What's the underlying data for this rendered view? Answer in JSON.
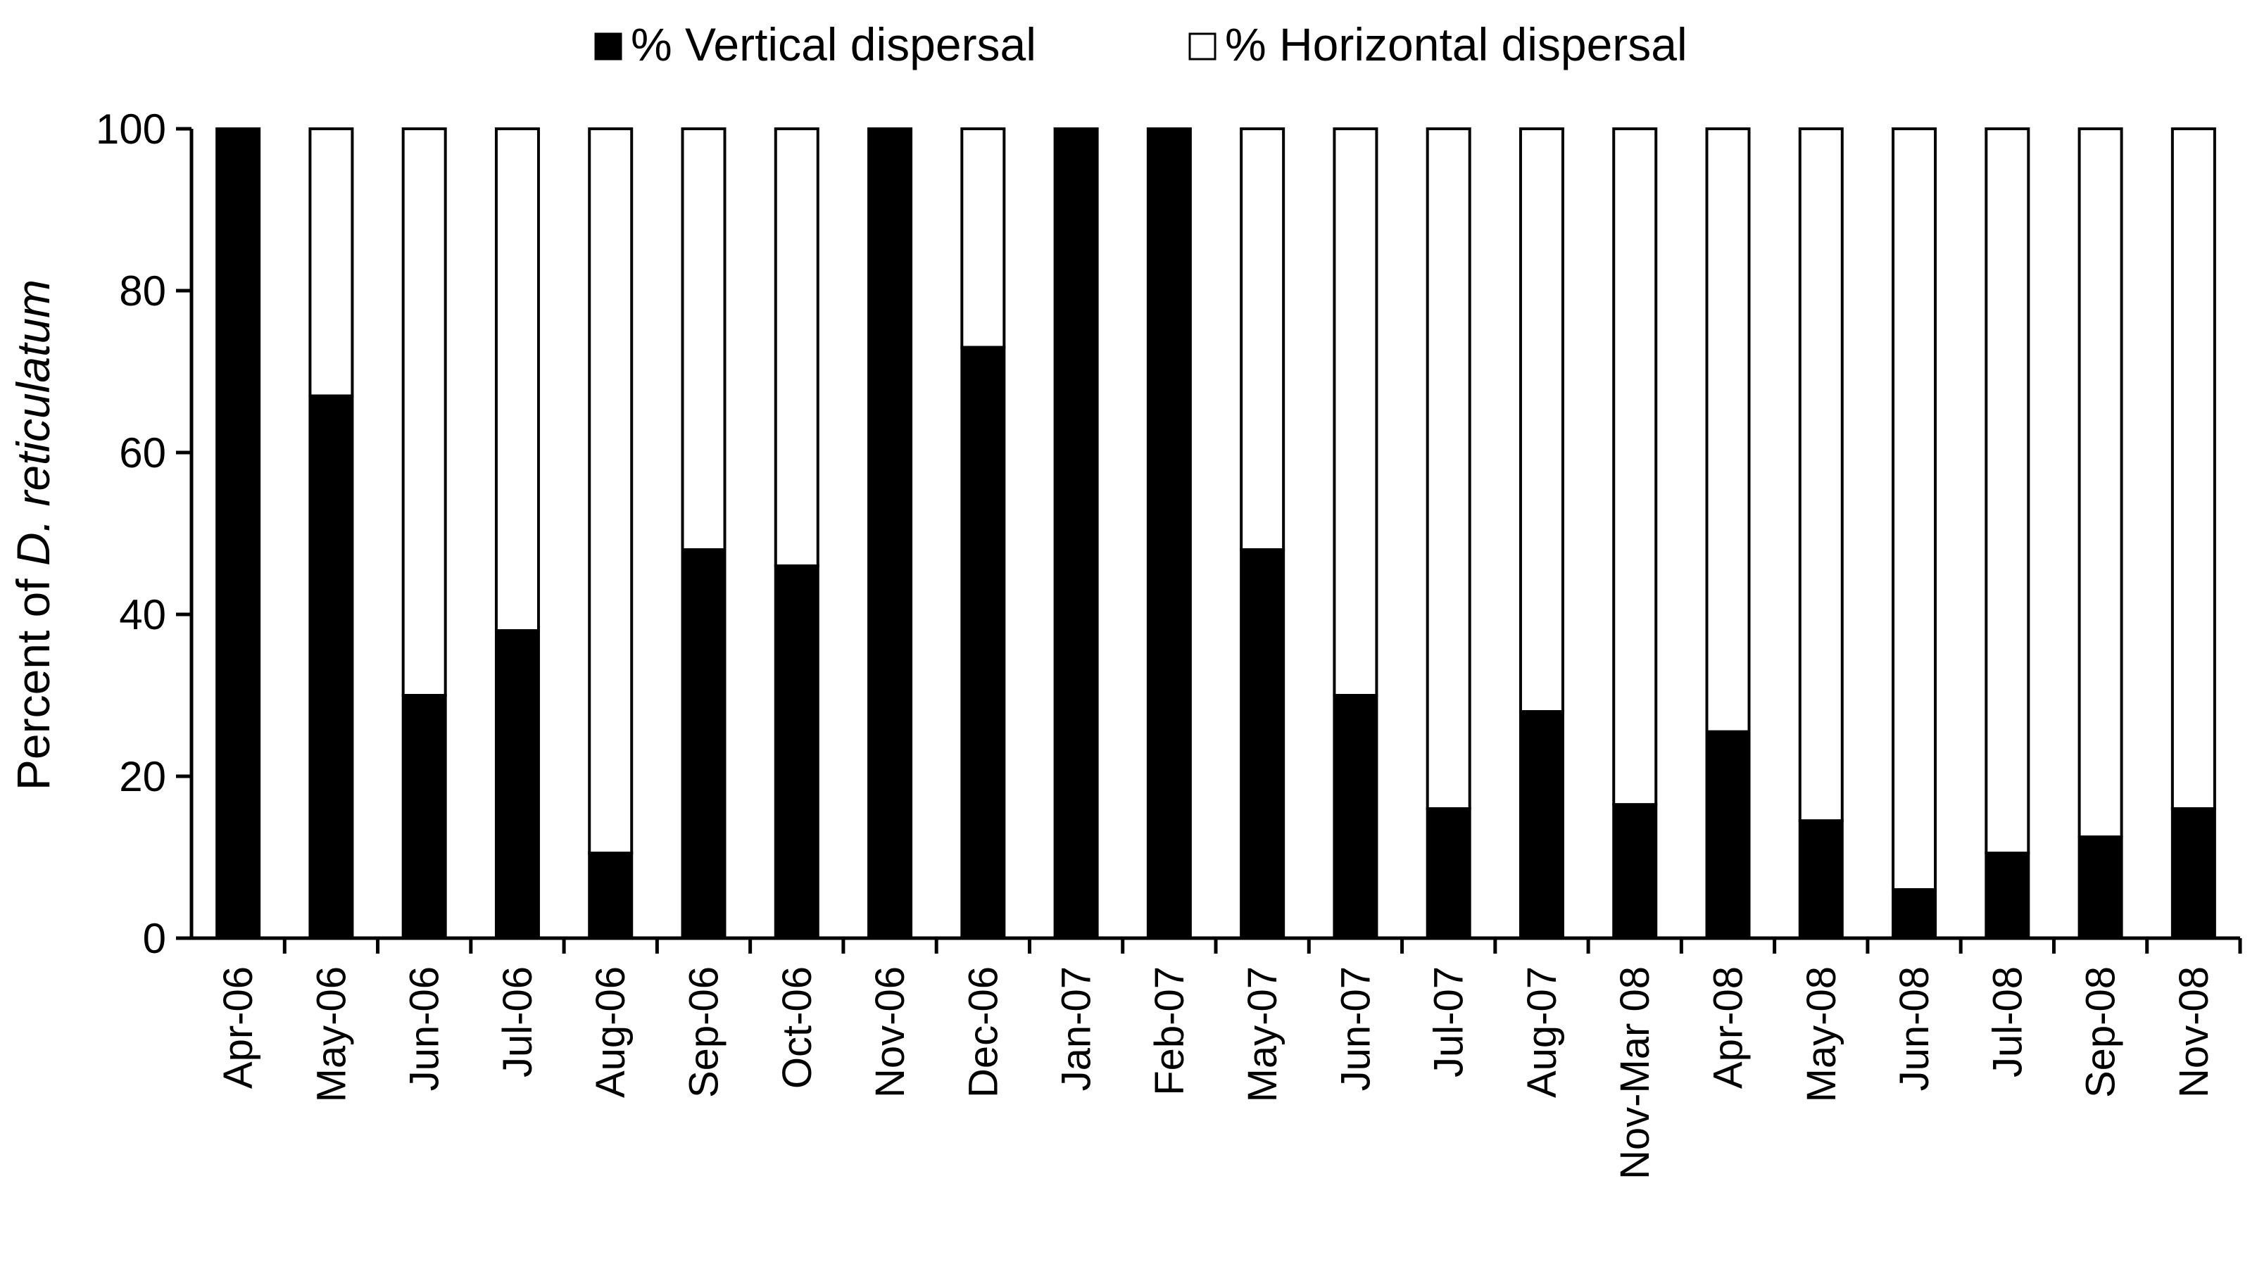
{
  "chart_data": {
    "type": "bar",
    "stacked": true,
    "title": "",
    "xlabel": "",
    "ylabel_prefix": "Percent of ",
    "ylabel_species": "D. reticulatum",
    "ylim": [
      0,
      100
    ],
    "yticks": [
      "0",
      "20",
      "40",
      "60",
      "80",
      "100"
    ],
    "grid": false,
    "legend_position": "top-center",
    "categories": [
      "Apr-06",
      "May-06",
      "Jun-06",
      "Jul-06",
      "Aug-06",
      "Sep-06",
      "Oct-06",
      "Nov-06",
      "Dec-06",
      "Jan-07",
      "Feb-07",
      "May-07",
      "Jun-07",
      "Jul-07",
      "Aug-07",
      "Nov-Mar 08",
      "Apr-08",
      "May-08",
      "Jun-08",
      "Jul-08",
      "Sep-08",
      "Nov-08"
    ],
    "series": [
      {
        "name": "% Vertical dispersal",
        "color": "#000000",
        "values": [
          100,
          67,
          30,
          38,
          10.5,
          48,
          46,
          100,
          73,
          100,
          100,
          48,
          30,
          16,
          28,
          16.5,
          25.5,
          14.5,
          6,
          10.5,
          12.5,
          16
        ]
      },
      {
        "name": "% Horizontal dispersal",
        "color": "#ffffff",
        "values": [
          0,
          33,
          70,
          62,
          89.5,
          52,
          54,
          0,
          27,
          0,
          0,
          52,
          70,
          84,
          72,
          83.5,
          74.5,
          85.5,
          94,
          89.5,
          87.5,
          84
        ]
      }
    ]
  }
}
